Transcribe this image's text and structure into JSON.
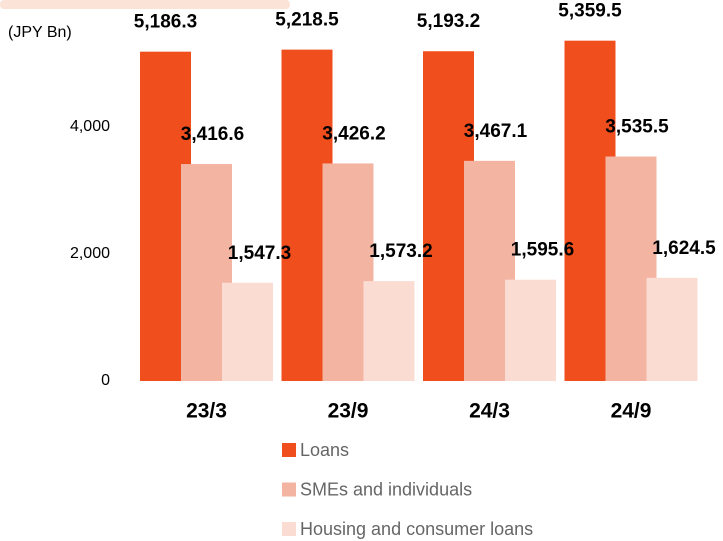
{
  "chart_data": {
    "type": "bar",
    "y_label": "(JPY Bn)",
    "categories": [
      "23/3",
      "23/9",
      "24/3",
      "24/9"
    ],
    "series": [
      {
        "name": "Loans",
        "color": "#f04e1c",
        "values": [
          5186.3,
          5218.5,
          5193.2,
          5359.5
        ],
        "value_labels": [
          "5,186.3",
          "5,218.5",
          "5,193.2",
          "5,359.5"
        ]
      },
      {
        "name": "SMEs and individuals",
        "color": "#f4b4a2",
        "values": [
          3416.6,
          3426.2,
          3467.1,
          3535.5
        ],
        "value_labels": [
          "3,416.6",
          "3,426.2",
          "3,467.1",
          "3,535.5"
        ]
      },
      {
        "name": "Housing and consumer loans",
        "color": "#fbdcd3",
        "values": [
          1547.3,
          1573.2,
          1595.6,
          1624.5
        ],
        "value_labels": [
          "1,547.3",
          "1,573.2",
          "1,595.6",
          "1,624.5"
        ]
      }
    ],
    "ylim": [
      0,
      6000
    ],
    "yticks": [
      0,
      {
        "value": 2000,
        "label": "2,000"
      },
      {
        "value": 4000,
        "label": "4,000"
      }
    ],
    "legend": "bottom"
  }
}
